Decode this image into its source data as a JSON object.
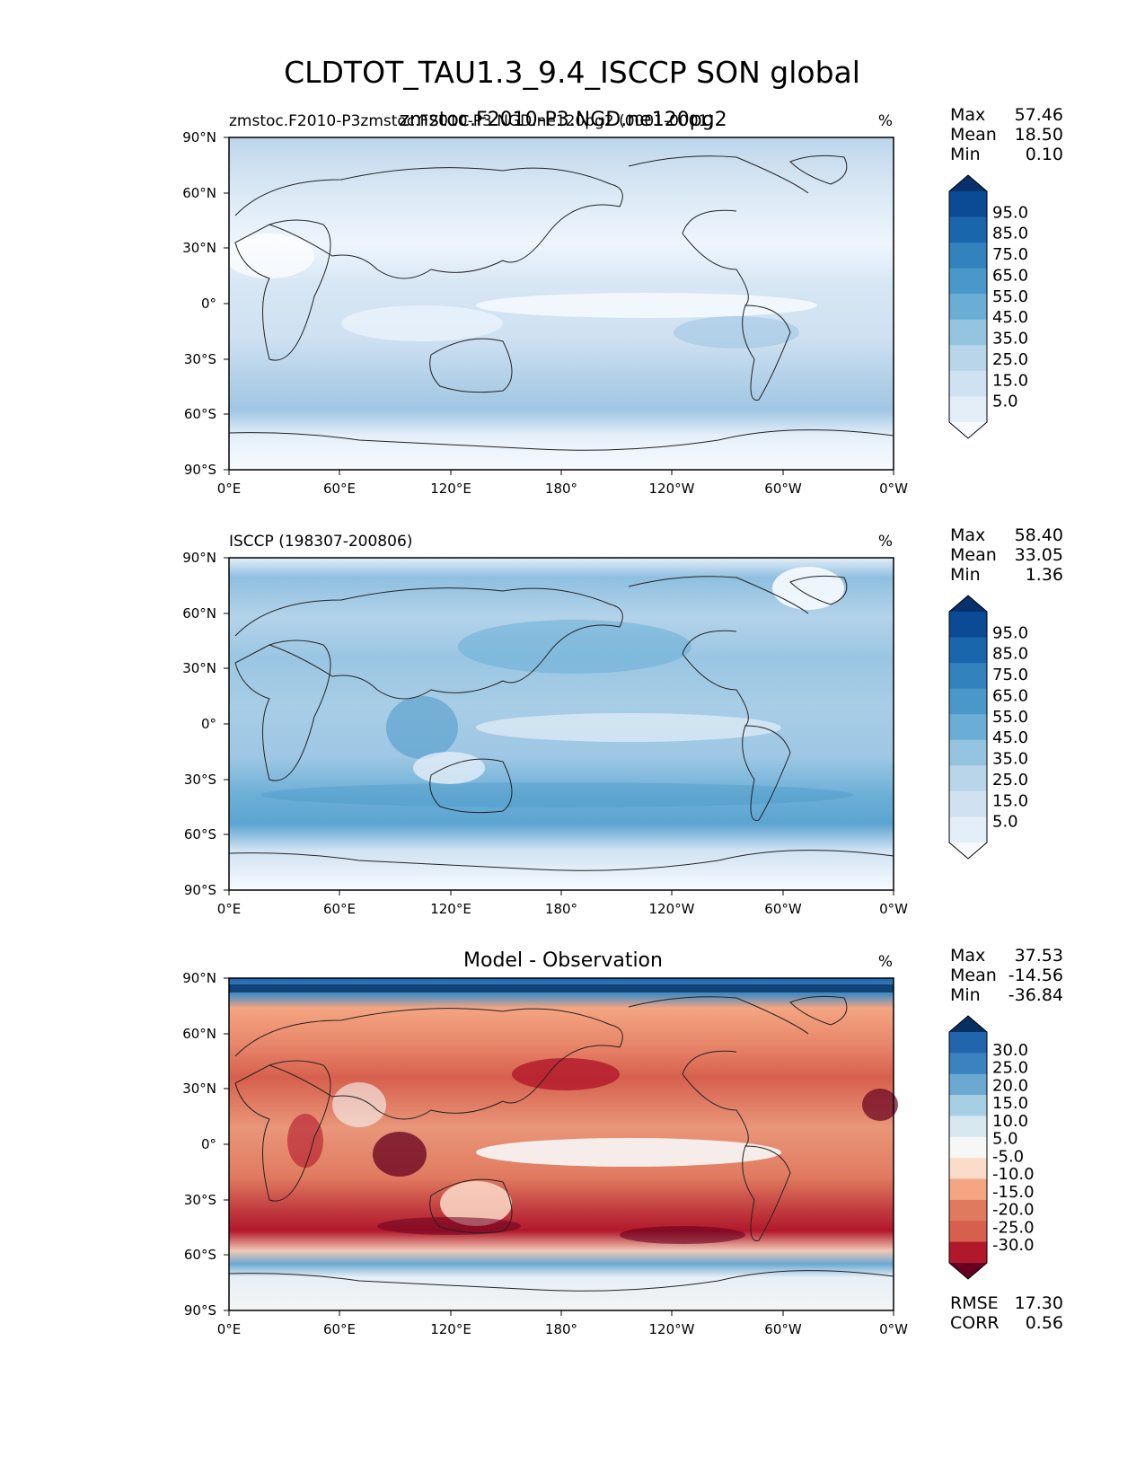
{
  "figure": {
    "title": "CLDTOT_TAU1.3_9.4_ISCCP SON global"
  },
  "lat_ticks": [
    "90°N",
    "60°N",
    "30°N",
    "0°",
    "30°S",
    "60°S",
    "90°S"
  ],
  "lon_ticks": [
    "0°E",
    "60°E",
    "120°E",
    "180°",
    "120°W",
    "60°W",
    "0°W"
  ],
  "panels": [
    {
      "id": "test",
      "left_title": "zmstoc.F2010-P3zmstoc.F2010-P3.NGD.ne120pg2 (0001-0001)",
      "center_title": "zmstoc.F2010-P3.NGD.ne120pg2",
      "units": "%",
      "stats": [
        {
          "label": "Max",
          "value": "57.46"
        },
        {
          "label": "Mean",
          "value": "18.50"
        },
        {
          "label": "Min",
          "value": "0.10"
        }
      ],
      "colorbar": {
        "labels": [
          "95.0",
          "85.0",
          "75.0",
          "65.0",
          "55.0",
          "45.0",
          "35.0",
          "25.0",
          "15.0",
          "5.0"
        ],
        "colors": [
          "#08306b",
          "#0b4a94",
          "#1a66ad",
          "#3182bd",
          "#4a98c9",
          "#6aaed6",
          "#94c4df",
          "#b8d5ea",
          "#d0e2f2",
          "#e3eef8",
          "#f7fbff"
        ]
      },
      "footer_stats": []
    },
    {
      "id": "ref",
      "left_title": "ISCCP (198307-200806)",
      "center_title": "",
      "units": "%",
      "stats": [
        {
          "label": "Max",
          "value": "58.40"
        },
        {
          "label": "Mean",
          "value": "33.05"
        },
        {
          "label": "Min",
          "value": "1.36"
        }
      ],
      "colorbar": {
        "labels": [
          "95.0",
          "85.0",
          "75.0",
          "65.0",
          "55.0",
          "45.0",
          "35.0",
          "25.0",
          "15.0",
          "5.0"
        ],
        "colors": [
          "#08306b",
          "#0b4a94",
          "#1a66ad",
          "#3182bd",
          "#4a98c9",
          "#6aaed6",
          "#94c4df",
          "#b8d5ea",
          "#d0e2f2",
          "#e3eef8",
          "#f7fbff"
        ]
      },
      "footer_stats": []
    },
    {
      "id": "diff",
      "left_title": "",
      "center_title": "Model - Observation",
      "units": "%",
      "stats": [
        {
          "label": "Max",
          "value": "37.53"
        },
        {
          "label": "Mean",
          "value": "-14.56"
        },
        {
          "label": "Min",
          "value": "-36.84"
        }
      ],
      "colorbar": {
        "labels": [
          "30.0",
          "25.0",
          "20.0",
          "15.0",
          "10.0",
          "5.0",
          "-5.0",
          "-10.0",
          "-15.0",
          "-20.0",
          "-25.0",
          "-30.0"
        ],
        "colors": [
          "#053061",
          "#2166ac",
          "#3a82c0",
          "#6ba9d2",
          "#a7cfe4",
          "#d7e8f1",
          "#f7f7f7",
          "#fbdbc9",
          "#f4a582",
          "#e07a5f",
          "#d6604d",
          "#b2182b",
          "#67001f"
        ]
      },
      "footer_stats": [
        {
          "label": "RMSE",
          "value": "17.30"
        },
        {
          "label": "CORR",
          "value": "0.56"
        }
      ]
    }
  ]
}
